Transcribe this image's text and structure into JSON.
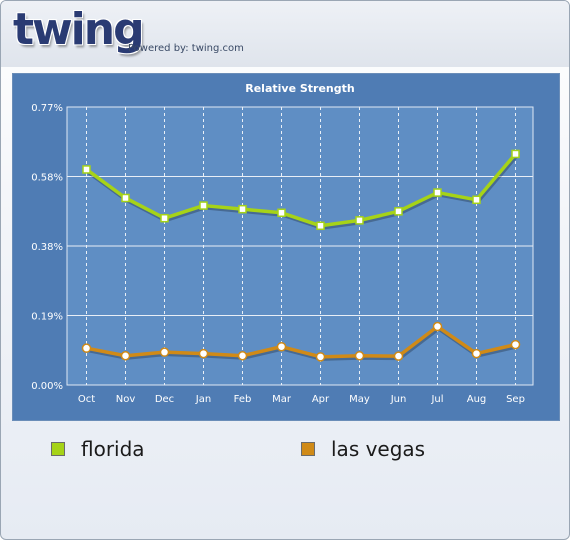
{
  "header": {
    "logo_text": "twing",
    "powered_by": "Powered by: twing.com"
  },
  "colors": {
    "panel_bg": "#4f7cb4",
    "plot_bg": "#5f8ec4",
    "florida": "#a6d317",
    "las_vegas": "#d08a17"
  },
  "chart_data": {
    "type": "line",
    "title": "Relative Strength",
    "xlabel": "",
    "ylabel": "",
    "categories": [
      "Oct",
      "Nov",
      "Dec",
      "Jan",
      "Feb",
      "Mar",
      "Apr",
      "May",
      "Jun",
      "Jul",
      "Aug",
      "Sep"
    ],
    "y_ticks": [
      "0.00%",
      "0.19%",
      "0.38%",
      "0.58%",
      "0.77%"
    ],
    "ylim": [
      0,
      0.77
    ],
    "grid": true,
    "legend_position": "bottom",
    "series": [
      {
        "name": "florida",
        "color": "#a6d317",
        "marker": "square",
        "values": [
          0.597,
          0.518,
          0.462,
          0.497,
          0.487,
          0.477,
          0.441,
          0.456,
          0.481,
          0.533,
          0.513,
          0.64
        ]
      },
      {
        "name": "las vegas",
        "color": "#d08a17",
        "marker": "circle",
        "values": [
          0.102,
          0.081,
          0.091,
          0.087,
          0.081,
          0.106,
          0.078,
          0.081,
          0.08,
          0.162,
          0.087,
          0.112
        ]
      }
    ]
  }
}
